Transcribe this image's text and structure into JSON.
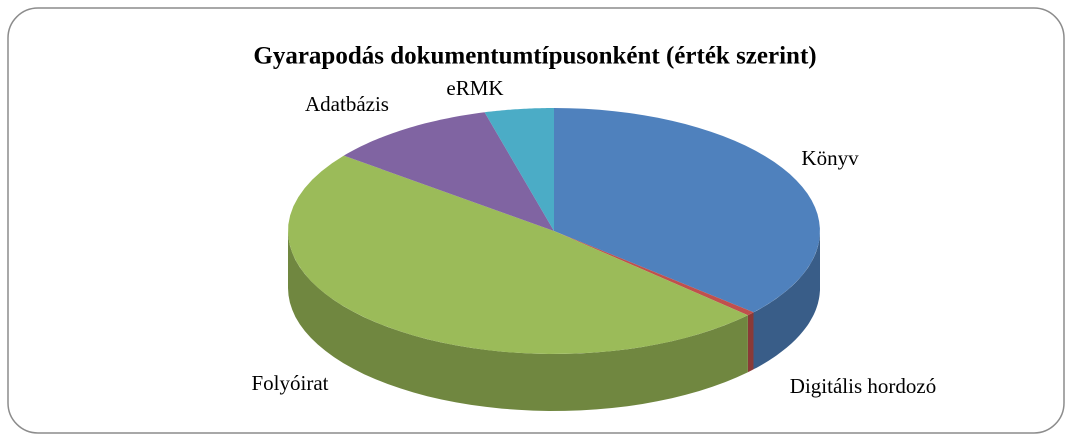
{
  "chart_data": {
    "type": "pie3d",
    "title": "Gyarapodás dokumentumtípusonként (érték szerint)",
    "categories": [
      "Könyv",
      "Digitális hordozó",
      "Folyóirat",
      "Adatbázis",
      "eRMK"
    ],
    "values": [
      36.5,
      0.5,
      48.5,
      10.3,
      4.2
    ],
    "colors": [
      "#4f81bd",
      "#c0504d",
      "#9bbb59",
      "#8064a2",
      "#4bacc6"
    ]
  }
}
